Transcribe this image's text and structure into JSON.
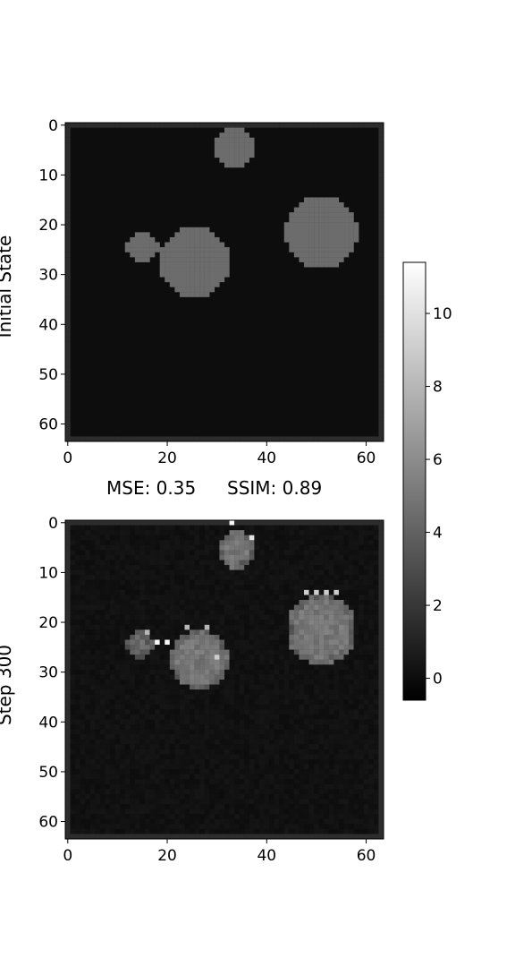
{
  "metrics": {
    "mse": "MSE: 0.35",
    "ssim": "SSIM: 0.89"
  },
  "colormap": {
    "name": "gray",
    "low_color": "#000000",
    "high_color": "#ffffff",
    "vmin": -0.6,
    "vmax": 11.4,
    "ticks": [
      "0",
      "2",
      "4",
      "6",
      "8",
      "10"
    ],
    "tick_values": [
      0,
      2,
      4,
      6,
      8,
      10
    ]
  },
  "chart_data": [
    {
      "type": "heatmap",
      "ylabel": "Initial State",
      "grid": false,
      "grid_size": [
        64,
        64
      ],
      "xlim": [
        -0.5,
        63.5
      ],
      "ylim": [
        63.5,
        -0.5
      ],
      "xticks": [
        "0",
        "20",
        "40",
        "60"
      ],
      "xtick_values": [
        0,
        20,
        40,
        60
      ],
      "yticks": [
        "0",
        "10",
        "20",
        "30",
        "40",
        "50",
        "60"
      ],
      "ytick_values": [
        0,
        10,
        20,
        30,
        40,
        50,
        60
      ],
      "background_value": 0,
      "border_value": 1.5,
      "blobs": [
        {
          "cx": 33.5,
          "cy": 4.5,
          "r": 4.3,
          "value": 4.5
        },
        {
          "cx": 51.0,
          "cy": 21.5,
          "r": 7.3,
          "value": 4.5
        },
        {
          "cx": 15.0,
          "cy": 24.5,
          "r": 3.2,
          "value": 4.5
        },
        {
          "cx": 25.5,
          "cy": 27.5,
          "r": 7.0,
          "value": 4.5
        }
      ]
    },
    {
      "type": "heatmap",
      "ylabel": "Step 300",
      "grid": false,
      "grid_size": [
        64,
        64
      ],
      "xlim": [
        -0.5,
        63.5
      ],
      "ylim": [
        63.5,
        -0.5
      ],
      "xticks": [
        "0",
        "20",
        "40",
        "60"
      ],
      "xtick_values": [
        0,
        20,
        40,
        60
      ],
      "yticks": [
        "0",
        "10",
        "20",
        "30",
        "40",
        "50",
        "60"
      ],
      "ytick_values": [
        0,
        10,
        20,
        30,
        40,
        50,
        60
      ],
      "background_value": 0.2,
      "border_value": 1.5,
      "blobs": [
        {
          "cx": 34.0,
          "cy": 5.5,
          "r": 3.8,
          "value": 5.0
        },
        {
          "cx": 51.0,
          "cy": 21.5,
          "r": 7.0,
          "value": 5.0
        },
        {
          "cx": 14.5,
          "cy": 24.5,
          "r": 2.6,
          "value": 4.5
        },
        {
          "cx": 26.5,
          "cy": 27.5,
          "r": 6.0,
          "value": 5.0
        }
      ],
      "bright_pixels": [
        [
          33,
          0,
          11
        ],
        [
          37,
          3,
          10
        ],
        [
          48,
          14,
          9
        ],
        [
          50,
          14,
          9
        ],
        [
          52,
          14,
          9
        ],
        [
          54,
          14,
          9
        ],
        [
          18,
          24,
          11
        ],
        [
          20,
          24,
          11
        ],
        [
          16,
          22,
          8
        ],
        [
          24,
          21,
          8
        ],
        [
          28,
          21,
          8
        ],
        [
          30,
          27,
          9
        ]
      ]
    }
  ]
}
